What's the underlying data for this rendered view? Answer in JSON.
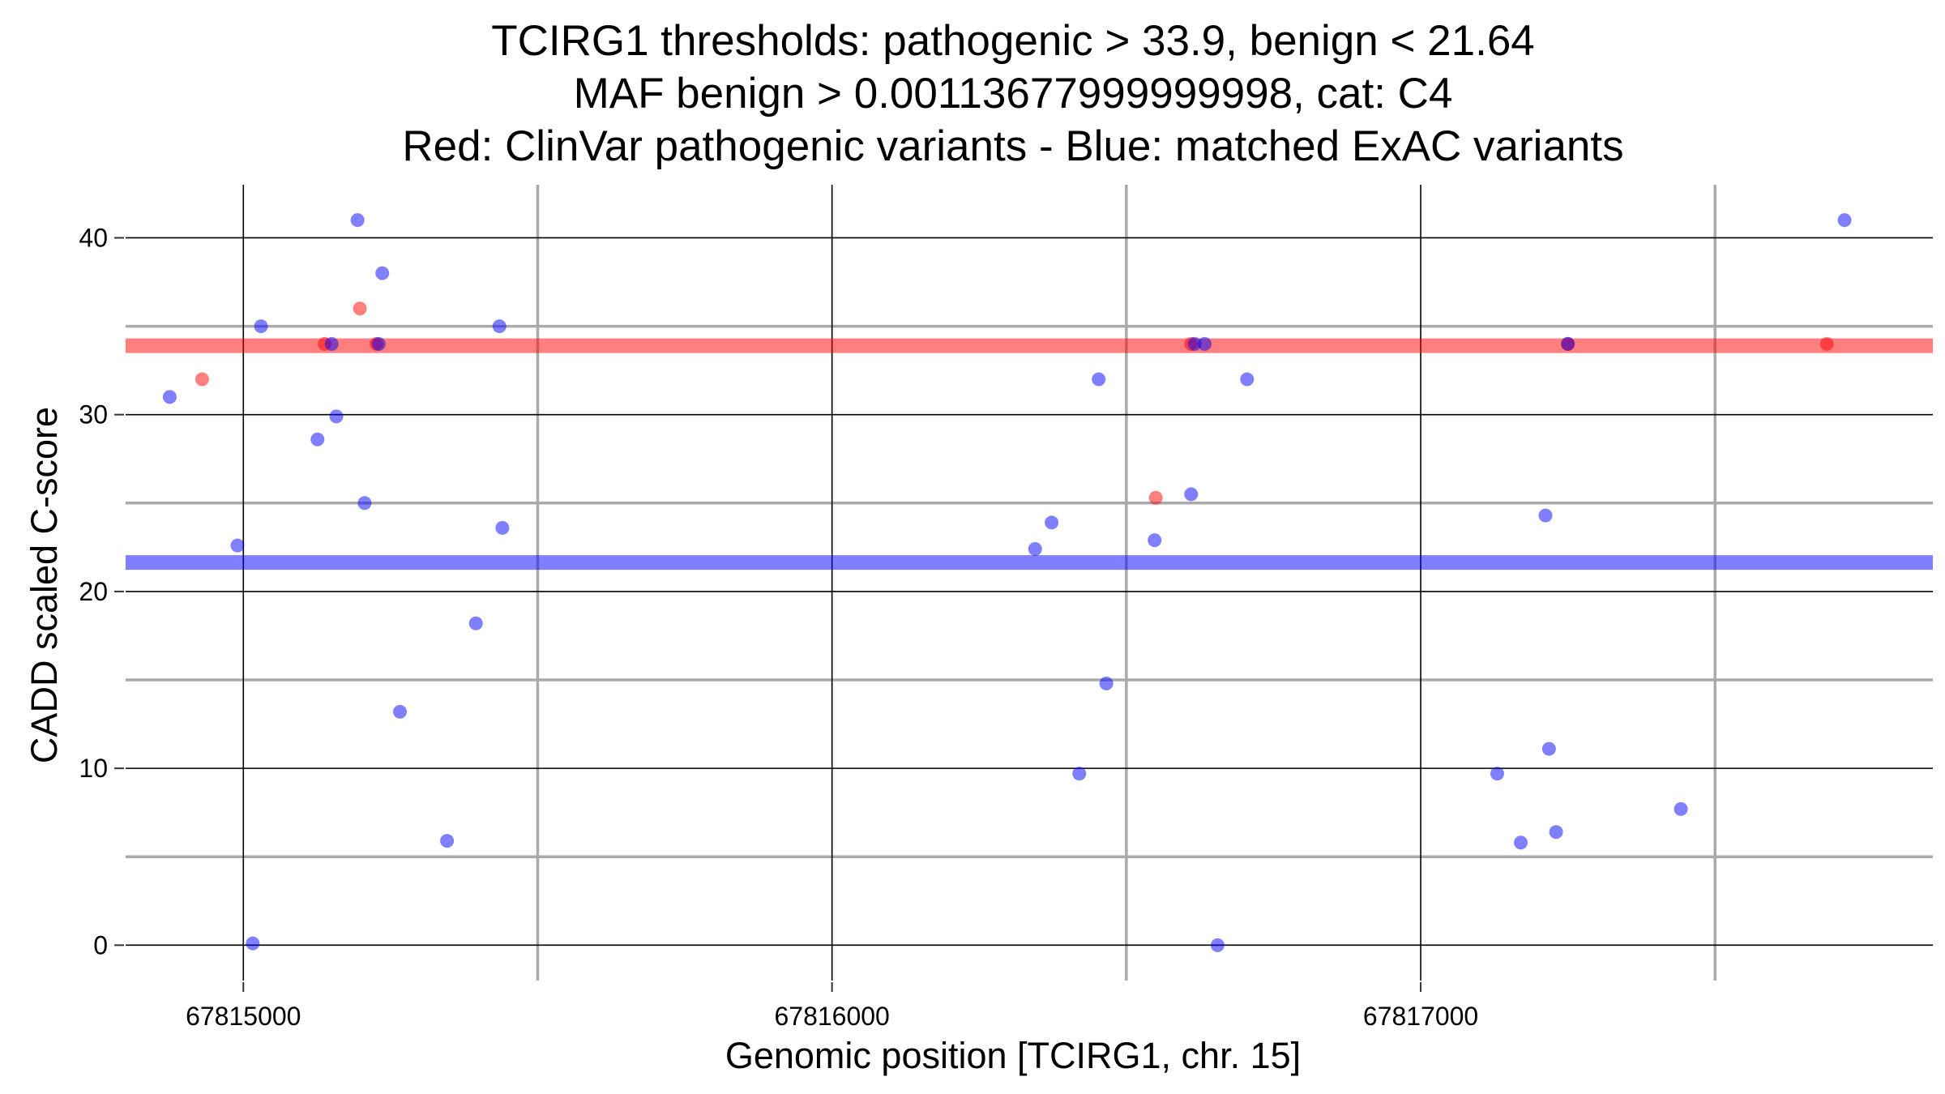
{
  "chart_data": {
    "type": "scatter",
    "title_lines": [
      "TCIRG1 thresholds: pathogenic > 33.9, benign < 21.64",
      "MAF benign > 0.00113677999999998, cat: C4",
      "Red: ClinVar pathogenic variants - Blue: matched ExAC variants"
    ],
    "xlabel": "Genomic position [TCIRG1, chr. 15]",
    "ylabel": "CADD scaled C-score",
    "xlim": [
      67814800,
      67817870
    ],
    "ylim": [
      -2,
      43
    ],
    "x_major_ticks": [
      67815000,
      67816000,
      67817000
    ],
    "x_tick_labels": [
      "67815000",
      "67816000",
      "67817000"
    ],
    "x_minor_ticks": [
      67815500,
      67816500,
      67817500
    ],
    "y_major_ticks": [
      0,
      10,
      20,
      30,
      40
    ],
    "y_tick_labels": [
      "0",
      "10",
      "20",
      "30",
      "40"
    ],
    "y_minor_ticks": [
      5,
      15,
      25,
      35
    ],
    "thresholds": [
      {
        "name": "pathogenic",
        "value": 33.9,
        "color": "#ff0000"
      },
      {
        "name": "benign",
        "value": 21.64,
        "color": "#0000ff"
      }
    ],
    "series": [
      {
        "name": "ClinVar pathogenic variants",
        "color": "#ff0000",
        "points": [
          {
            "x": 67814930,
            "y": 32.0
          },
          {
            "x": 67815138,
            "y": 34.0
          },
          {
            "x": 67815198,
            "y": 36.0
          },
          {
            "x": 67815226,
            "y": 34.0
          },
          {
            "x": 67816550,
            "y": 25.3
          },
          {
            "x": 67816610,
            "y": 34.0
          },
          {
            "x": 67817250,
            "y": 34.0
          },
          {
            "x": 67817690,
            "y": 34.0
          }
        ]
      },
      {
        "name": "matched ExAC variants",
        "color": "#0000ff",
        "points": [
          {
            "x": 67814875,
            "y": 31.0
          },
          {
            "x": 67814990,
            "y": 22.6
          },
          {
            "x": 67815016,
            "y": 0.1
          },
          {
            "x": 67815030,
            "y": 35.0
          },
          {
            "x": 67815126,
            "y": 28.6
          },
          {
            "x": 67815150,
            "y": 34.0
          },
          {
            "x": 67815158,
            "y": 29.9
          },
          {
            "x": 67815194,
            "y": 41.0
          },
          {
            "x": 67815206,
            "y": 25.0
          },
          {
            "x": 67815230,
            "y": 34.0
          },
          {
            "x": 67815236,
            "y": 38.0
          },
          {
            "x": 67815266,
            "y": 13.2
          },
          {
            "x": 67815346,
            "y": 5.9
          },
          {
            "x": 67815395,
            "y": 18.2
          },
          {
            "x": 67815435,
            "y": 35.0
          },
          {
            "x": 67815440,
            "y": 23.6
          },
          {
            "x": 67816345,
            "y": 22.4
          },
          {
            "x": 67816373,
            "y": 23.9
          },
          {
            "x": 67816420,
            "y": 9.7
          },
          {
            "x": 67816453,
            "y": 32.0
          },
          {
            "x": 67816466,
            "y": 14.8
          },
          {
            "x": 67816548,
            "y": 22.9
          },
          {
            "x": 67816610,
            "y": 25.5
          },
          {
            "x": 67816616,
            "y": 34.0
          },
          {
            "x": 67816633,
            "y": 34.0
          },
          {
            "x": 67816655,
            "y": 0.0
          },
          {
            "x": 67816705,
            "y": 32.0
          },
          {
            "x": 67817130,
            "y": 9.7
          },
          {
            "x": 67817170,
            "y": 5.8
          },
          {
            "x": 67817212,
            "y": 24.3
          },
          {
            "x": 67817218,
            "y": 11.1
          },
          {
            "x": 67817230,
            "y": 6.4
          },
          {
            "x": 67817250,
            "y": 34.0
          },
          {
            "x": 67817442,
            "y": 7.7
          },
          {
            "x": 67817720,
            "y": 41.0
          }
        ]
      }
    ]
  }
}
